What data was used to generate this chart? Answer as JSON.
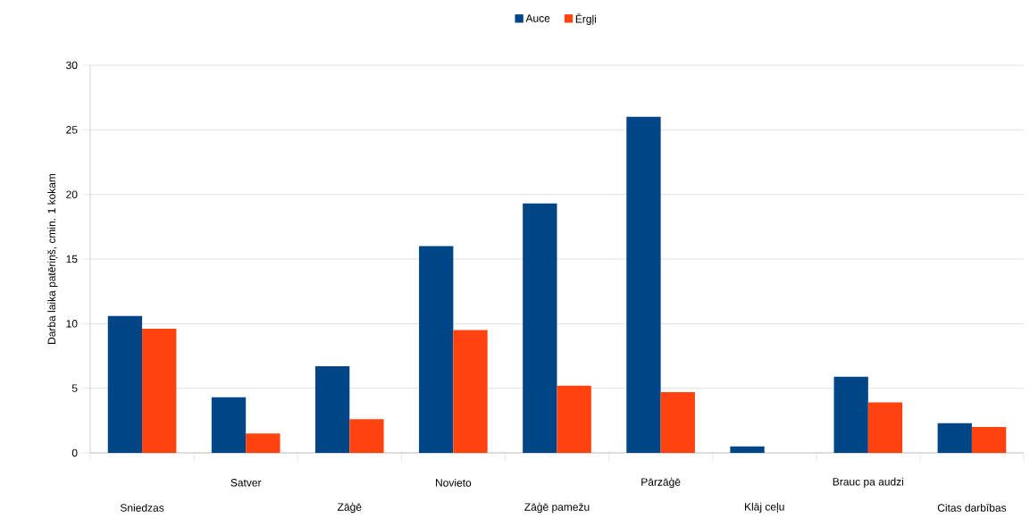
{
  "chart_data": {
    "type": "bar",
    "ylabel": "Darba laika patēriņš, cmin. 1 kokam",
    "categories": [
      "Sniedzas",
      "Satver",
      "Zāģē",
      "Novieto",
      "Zāģē pamežu",
      "Pārzāģē",
      "Klāj ceļu",
      "Brauc pa audzi",
      "Citas darbības"
    ],
    "series": [
      {
        "name": "Auce",
        "color": "#004586",
        "values": [
          10.6,
          4.3,
          6.7,
          16.0,
          19.3,
          26.0,
          0.5,
          5.9,
          2.3
        ]
      },
      {
        "name": "Ērgļi",
        "color": "#ff420e",
        "values": [
          9.6,
          1.5,
          2.6,
          9.5,
          5.2,
          4.7,
          null,
          3.9,
          2.0
        ]
      }
    ],
    "ylim": [
      0,
      30
    ],
    "yticks": [
      0,
      5,
      10,
      15,
      20,
      25,
      30
    ],
    "grid": "y",
    "legend": "top"
  }
}
